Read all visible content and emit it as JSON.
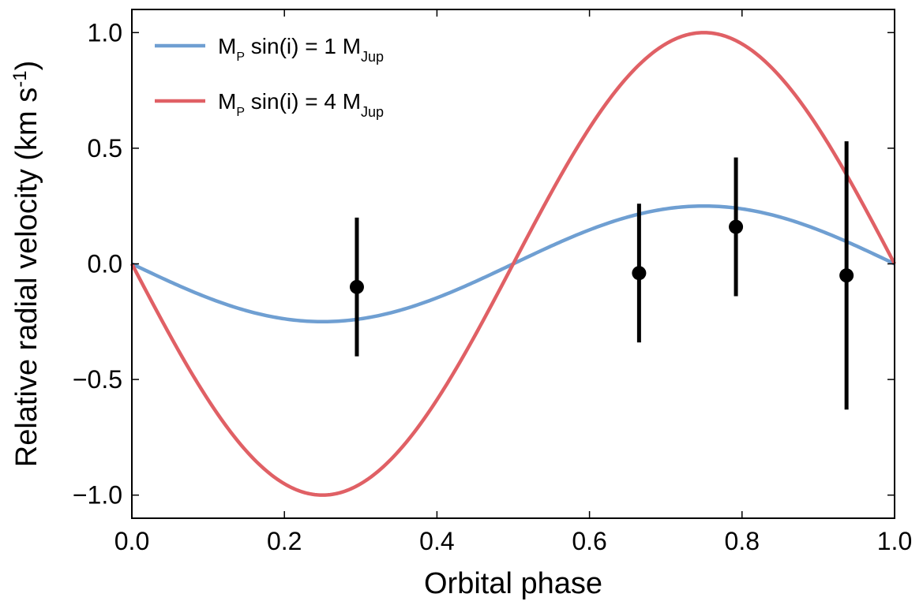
{
  "chart_data": {
    "type": "line",
    "xlabel": "Orbital phase",
    "ylabel": {
      "main": "Relative radial velocity (km s",
      "superscript": "-1",
      "close": ")"
    },
    "xlim": [
      0.0,
      1.0
    ],
    "ylim": [
      -1.1,
      1.1
    ],
    "x_ticks": [
      0.0,
      0.2,
      0.4,
      0.6,
      0.8,
      1.0
    ],
    "x_tick_labels": [
      "0.0",
      "0.2",
      "0.4",
      "0.6",
      "0.8",
      "1.0"
    ],
    "y_ticks": [
      1.0,
      0.5,
      0.0,
      -0.5,
      -1.0
    ],
    "y_tick_labels": [
      "1.0",
      "0.5",
      "0.0",
      "−0.5",
      "−1.0"
    ],
    "grid": false,
    "legend_position": "top-left",
    "series": [
      {
        "name": {
          "m": "M",
          "m_sub": "P",
          "mid": " sin(i) = 1 M",
          "unit_sub": "Jup"
        },
        "color": "#6f9fd2",
        "amplitude": 0.25,
        "model": "-A*sin(2*pi*phase)"
      },
      {
        "name": {
          "m": "M",
          "m_sub": "P",
          "mid": " sin(i) = 4 M",
          "unit_sub": "Jup"
        },
        "color": "#e06065",
        "amplitude": 1.0,
        "model": "-A*sin(2*pi*phase)"
      }
    ],
    "observations": {
      "color": "#000000",
      "points": [
        {
          "x": 0.295,
          "y": -0.1,
          "yerr": 0.3
        },
        {
          "x": 0.665,
          "y": -0.04,
          "yerr": 0.3
        },
        {
          "x": 0.792,
          "y": 0.16,
          "yerr": 0.3
        },
        {
          "x": 0.937,
          "y": -0.05,
          "yerr": 0.58
        }
      ]
    }
  }
}
